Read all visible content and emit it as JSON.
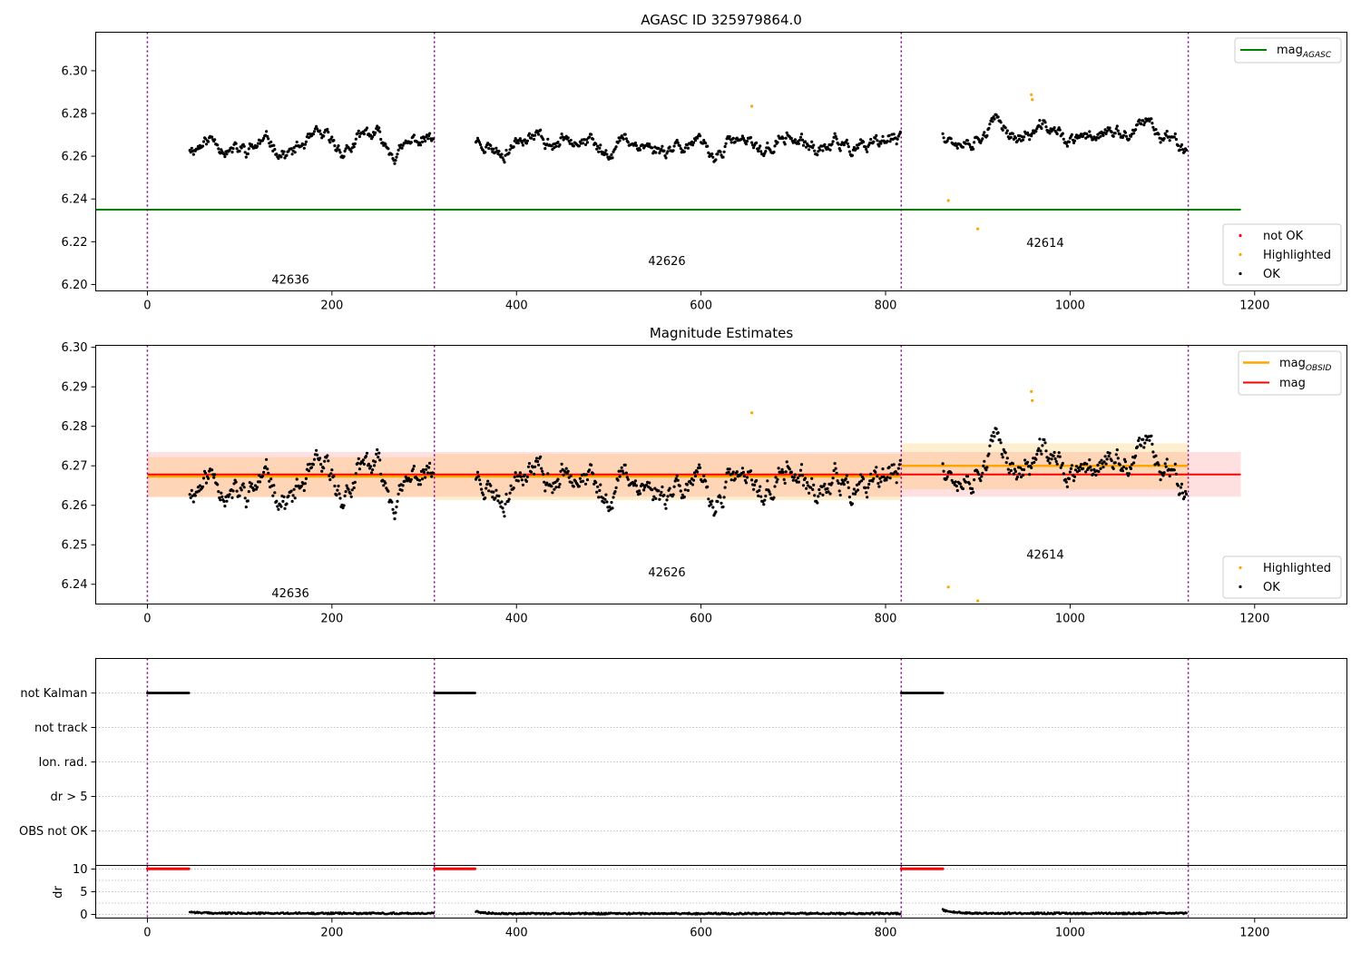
{
  "figure": {
    "background": "#ffffff"
  },
  "chart_data": [
    {
      "type": "scatter",
      "title": "AGASC ID 325979864.0",
      "xlabel": "",
      "ylabel": "",
      "xlim": [
        -56,
        1300
      ],
      "ylim": [
        6.197,
        6.318
      ],
      "xticks": [
        0,
        200,
        400,
        600,
        800,
        1000,
        1200
      ],
      "yticks": [
        6.2,
        6.22,
        6.24,
        6.26,
        6.28,
        6.3
      ],
      "ytick_labels": [
        "6.20",
        "6.22",
        "6.24",
        "6.26",
        "6.28",
        "6.30"
      ],
      "grid": false,
      "vlines": [
        0,
        311,
        817,
        1128
      ],
      "obsid_labels": [
        {
          "text": "42636",
          "x": 155,
          "y": 6.2005
        },
        {
          "text": "42626",
          "x": 563,
          "y": 6.209
        },
        {
          "text": "42614",
          "x": 973,
          "y": 6.2175
        }
      ],
      "hline": {
        "name": "mag_AGASC",
        "y": 6.235,
        "x_range": [
          -56,
          1185
        ],
        "color": "#008000"
      },
      "segments": [
        {
          "x": [
            46,
            310
          ],
          "base": 6.2665,
          "seed": 11
        },
        {
          "x": [
            356,
            816
          ],
          "base": 6.2655,
          "seed": 23
        },
        {
          "x": [
            862,
            1126
          ],
          "base": 6.269,
          "seed": 37
        }
      ],
      "highlighted": [
        [
          655,
          6.2834
        ],
        [
          868,
          6.2393
        ],
        [
          900,
          6.226
        ],
        [
          958,
          6.2888
        ],
        [
          959,
          6.2865
        ]
      ],
      "legends": [
        {
          "position": "top-right",
          "entries": [
            {
              "label": "mag",
              "sub": "AGASC",
              "kind": "line",
              "color": "#008000"
            }
          ]
        },
        {
          "position": "lower-right",
          "entries": [
            {
              "label": "not OK",
              "kind": "dot",
              "color": "#ff0000"
            },
            {
              "label": "Highlighted",
              "kind": "dot",
              "color": "#ffa500"
            },
            {
              "label": "OK",
              "kind": "dot",
              "color": "#000000"
            }
          ]
        }
      ]
    },
    {
      "type": "scatter",
      "title": "Magnitude Estimates",
      "xlabel": "",
      "ylabel": "",
      "xlim": [
        -56,
        1300
      ],
      "ylim": [
        6.235,
        6.3005
      ],
      "xticks": [
        0,
        200,
        400,
        600,
        800,
        1000,
        1200
      ],
      "yticks": [
        6.24,
        6.25,
        6.26,
        6.27,
        6.28,
        6.29,
        6.3
      ],
      "ytick_labels": [
        "6.24",
        "6.25",
        "6.26",
        "6.27",
        "6.28",
        "6.29",
        "6.30"
      ],
      "grid": false,
      "vlines": [
        0,
        311,
        817,
        1128
      ],
      "obsid_labels": [
        {
          "text": "42636",
          "x": 155,
          "y": 6.2367
        },
        {
          "text": "42626",
          "x": 563,
          "y": 6.242
        },
        {
          "text": "42614",
          "x": 973,
          "y": 6.2465
        }
      ],
      "mag": {
        "y": 6.2678,
        "band": [
          6.2622,
          6.2735
        ],
        "x_range": [
          0,
          1185
        ],
        "color": "#ff0000"
      },
      "mag_obsid": [
        {
          "x": [
            0,
            311
          ],
          "y": 6.2673,
          "band": [
            6.262,
            6.2722
          ]
        },
        {
          "x": [
            311,
            817
          ],
          "y": 6.2673,
          "band": [
            6.2613,
            6.273
          ]
        },
        {
          "x": [
            817,
            1128
          ],
          "y": 6.27,
          "band": [
            6.264,
            6.2757
          ]
        }
      ],
      "segments": [
        {
          "x": [
            46,
            310
          ],
          "base": 6.2665,
          "seed": 11
        },
        {
          "x": [
            356,
            816
          ],
          "base": 6.2655,
          "seed": 23
        },
        {
          "x": [
            862,
            1126
          ],
          "base": 6.269,
          "seed": 37
        }
      ],
      "highlighted": [
        [
          655,
          6.2834
        ],
        [
          868,
          6.2393
        ],
        [
          900,
          6.2358
        ],
        [
          958,
          6.2888
        ],
        [
          959,
          6.2865
        ]
      ],
      "legends": [
        {
          "position": "top-right",
          "entries": [
            {
              "label": "mag",
              "sub": "OBSID",
              "kind": "line",
              "color": "#ffa500"
            },
            {
              "label": "mag",
              "sub": "",
              "kind": "line",
              "color": "#ff0000"
            }
          ]
        },
        {
          "position": "lower-right",
          "entries": [
            {
              "label": "Highlighted",
              "kind": "dot",
              "color": "#ffa500"
            },
            {
              "label": "OK",
              "kind": "dot",
              "color": "#000000"
            }
          ]
        }
      ]
    },
    {
      "type": "scatter",
      "title": "",
      "xlabel": "",
      "ylabel": "",
      "xlim": [
        -56,
        1300
      ],
      "ylim": [
        -0.5,
        5.5
      ],
      "categories": [
        "not Kalman",
        "not track",
        "Ion. rad.",
        "dr > 5",
        "OBS not OK"
      ],
      "grid": true,
      "vlines": [
        0,
        311,
        817,
        1128
      ],
      "flag_ranges": {
        "not Kalman": [
          [
            0,
            45
          ],
          [
            311,
            355
          ],
          [
            817,
            862
          ]
        ]
      }
    },
    {
      "type": "scatter",
      "title": "",
      "xlabel": "",
      "ylabel": "dr",
      "xlim": [
        -56,
        1300
      ],
      "ylim": [
        -0.8,
        10.8
      ],
      "xticks": [
        0,
        200,
        400,
        600,
        800,
        1000,
        1200
      ],
      "yticks": [
        0,
        5,
        10
      ],
      "ytick_labels": [
        "0",
        "5",
        "10"
      ],
      "grid": true,
      "vlines": [
        0,
        311,
        817,
        1128
      ],
      "capped_ranges": [
        [
          0,
          45
        ],
        [
          311,
          355
        ],
        [
          817,
          862
        ]
      ],
      "cap_value": 10,
      "dr_segments": [
        {
          "x": [
            46,
            310
          ],
          "start": 0.6,
          "base": 0.25
        },
        {
          "x": [
            356,
            816
          ],
          "start": 0.6,
          "base": 0.2
        },
        {
          "x": [
            862,
            1126
          ],
          "start": 1.0,
          "base": 0.25
        }
      ]
    }
  ]
}
